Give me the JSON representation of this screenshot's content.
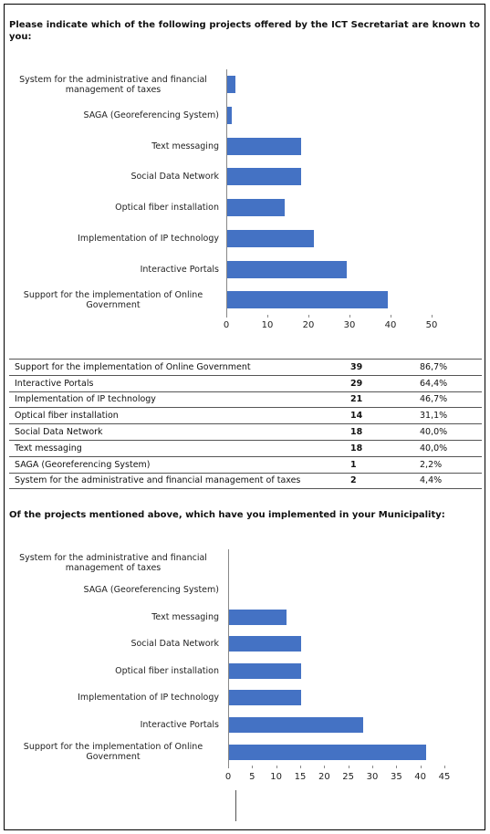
{
  "chart_data": [
    {
      "type": "bar",
      "orientation": "horizontal",
      "title": "Please indicate which of the following projects offered by the ICT Secretariat are known to you:",
      "categories": [
        "System for the administrative and financial management of taxes",
        "SAGA (Georeferencing System)",
        "Text messaging",
        "Social Data Network",
        "Optical fiber installation",
        "Implementation of IP technology",
        "Interactive Portals",
        "Support for the implementation of Online Government"
      ],
      "values": [
        2,
        1,
        18,
        18,
        14,
        21,
        29,
        39
      ],
      "color": "#4472c4",
      "xlim": [
        0,
        50
      ],
      "xticks": [
        0,
        10,
        20,
        30,
        40,
        50
      ]
    },
    {
      "type": "bar",
      "orientation": "horizontal",
      "title": "Of the projects mentioned above, which have you implemented in your Municipality:",
      "categories": [
        "System for the administrative and financial management of taxes",
        "SAGA (Georeferencing System)",
        "Text messaging",
        "Social Data Network",
        "Optical fiber installation",
        "Implementation of IP technology",
        "Interactive Portals",
        "Support for the implementation of Online Government"
      ],
      "values": [
        0,
        0,
        12,
        15,
        15,
        15,
        28,
        41
      ],
      "color": "#4472c4",
      "xlim": [
        0,
        45
      ],
      "xticks": [
        0,
        5,
        10,
        15,
        20,
        25,
        30,
        35,
        40,
        45
      ]
    }
  ],
  "table": {
    "rows": [
      [
        "Support for the implementation of Online Government",
        39,
        "86,7%"
      ],
      [
        "Interactive Portals",
        29,
        "64,4%"
      ],
      [
        "Implementation of IP technology",
        21,
        "46,7%"
      ],
      [
        "Optical fiber installation",
        14,
        "31,1%"
      ],
      [
        "Social Data Network",
        18,
        "40,0%"
      ],
      [
        "Text messaging",
        18,
        "40,0%"
      ],
      [
        "SAGA (Georeferencing System)",
        1,
        "2,2%"
      ],
      [
        "System for the administrative and financial management of taxes",
        2,
        "4,4%"
      ]
    ]
  }
}
